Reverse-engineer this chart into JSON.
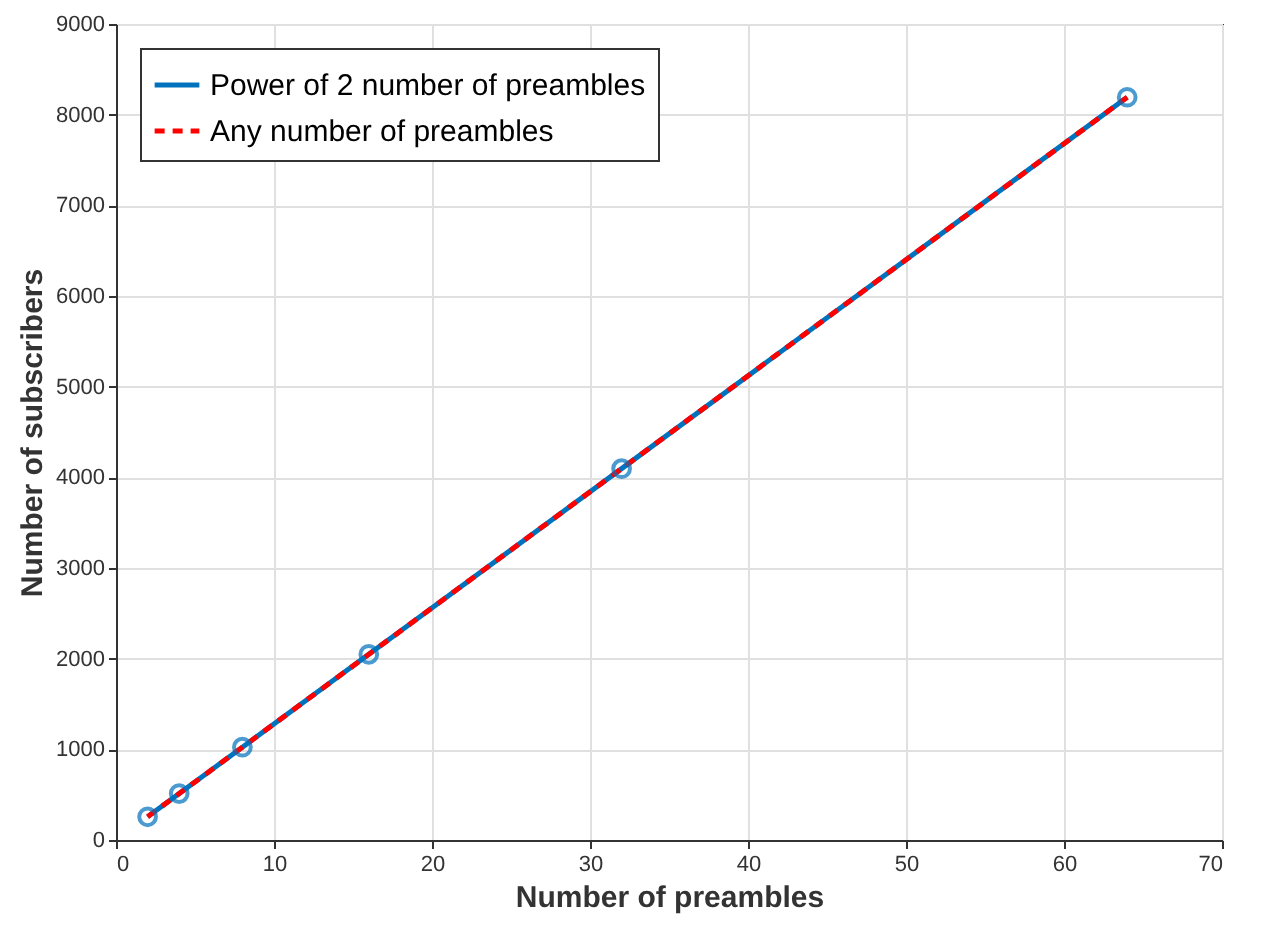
{
  "chart_data": {
    "type": "line",
    "xlabel": "Number of preambles",
    "ylabel": "Number of subscribers",
    "xlim": [
      0,
      70
    ],
    "xticks": [
      0,
      10,
      20,
      30,
      40,
      50,
      60,
      70
    ],
    "ylim": [
      0,
      9000
    ],
    "yticks": [
      0,
      1000,
      2000,
      3000,
      4000,
      5000,
      6000,
      7000,
      8000,
      9000
    ],
    "grid": true,
    "legend": "top left",
    "series": [
      {
        "name": "Power of 2 number of preambles",
        "color": "#0072bd",
        "x": [
          2,
          4,
          8,
          16,
          32,
          64
        ],
        "values": [
          256,
          512,
          1024,
          2048,
          4096,
          8192
        ],
        "marker": "circle",
        "line_style": "solid"
      },
      {
        "name": "Any number of preambles",
        "color": "#ff0000",
        "x": [
          2,
          64
        ],
        "values": [
          256,
          8192
        ],
        "marker": "none",
        "line_style": "dashed"
      }
    ]
  }
}
